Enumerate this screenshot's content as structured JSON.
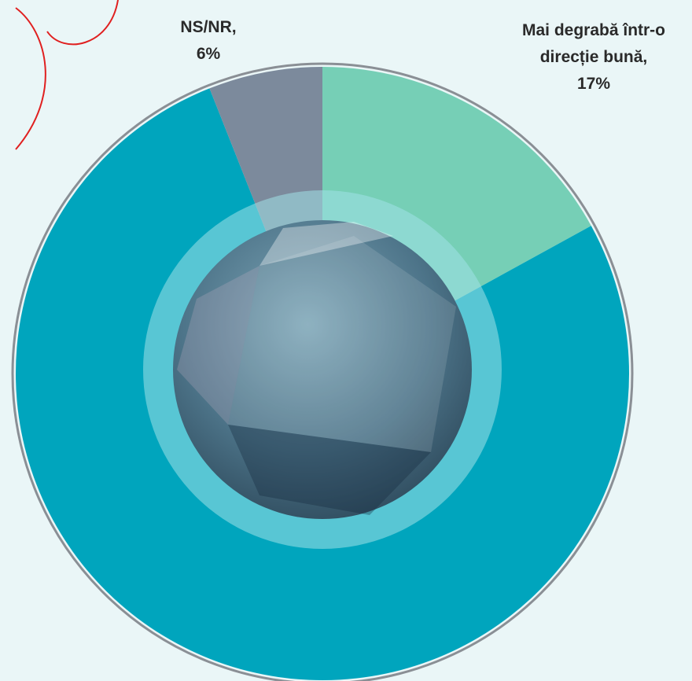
{
  "chart_data": {
    "type": "pie",
    "categories": [
      "Mai degrabă într-o direcție bună,",
      null,
      "NS/NR,"
    ],
    "values": [
      17,
      77,
      6
    ],
    "value_labels": [
      "17%",
      null,
      "6%"
    ],
    "colors": [
      "#76cfb6",
      "#00a5bd",
      "#7c8a9c"
    ]
  }
}
